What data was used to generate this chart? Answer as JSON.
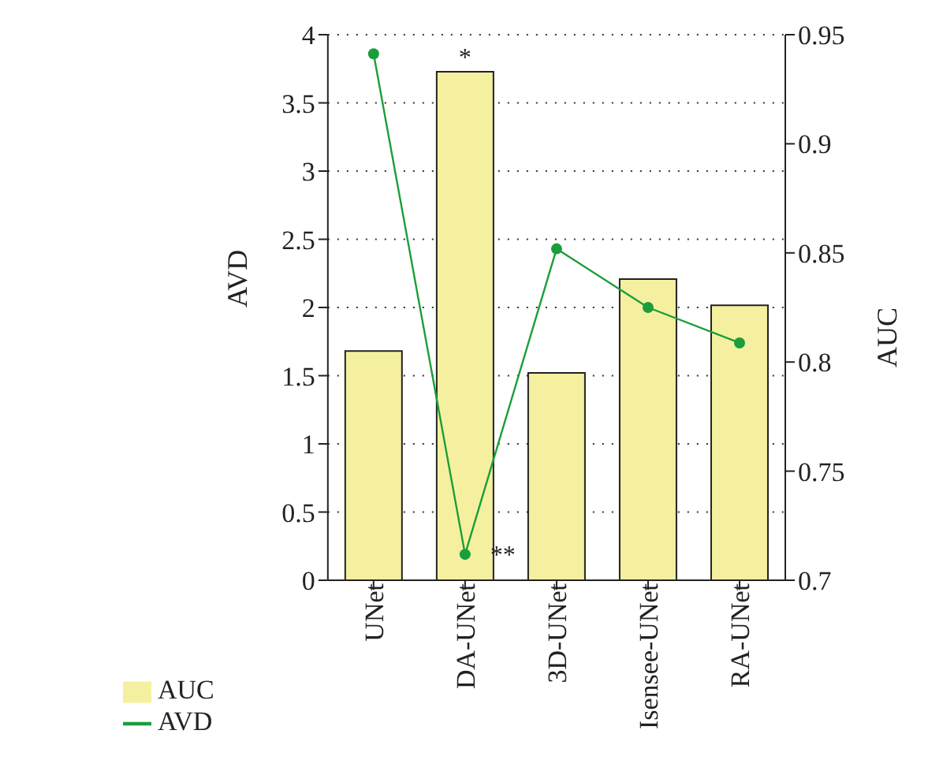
{
  "chart_data": {
    "type": "bar",
    "categories": [
      "UNet",
      "DA-UNet",
      "3D-UNet",
      "Isensee-UNet",
      "RA-UNet"
    ],
    "series": [
      {
        "name": "AUC",
        "axis": "y2",
        "color": "#f5f0a0",
        "values": [
          0.805,
          0.933,
          0.795,
          0.838,
          0.826
        ]
      },
      {
        "name": "AVD",
        "type": "line",
        "axis": "y",
        "color": "#1a9e3a",
        "values": [
          3.86,
          0.19,
          2.43,
          2.0,
          1.74
        ]
      }
    ],
    "ylabel": "AVD",
    "y2label": "AUC",
    "ylim": [
      0,
      4
    ],
    "yticks": [
      0,
      0.5,
      1,
      1.5,
      2,
      2.5,
      3,
      3.5,
      4
    ],
    "y2lim": [
      0.7,
      0.95
    ],
    "y2ticks": [
      0.7,
      0.75,
      0.8,
      0.85,
      0.9,
      0.95
    ],
    "annotations": [
      {
        "text": "*",
        "x": "DA-UNet",
        "y": 3.73
      },
      {
        "text": "**",
        "x": "DA-UNet",
        "y": 0.19
      }
    ],
    "grid": "y",
    "legend": "bottom left",
    "marker": "circle",
    "line_style": "solid"
  }
}
